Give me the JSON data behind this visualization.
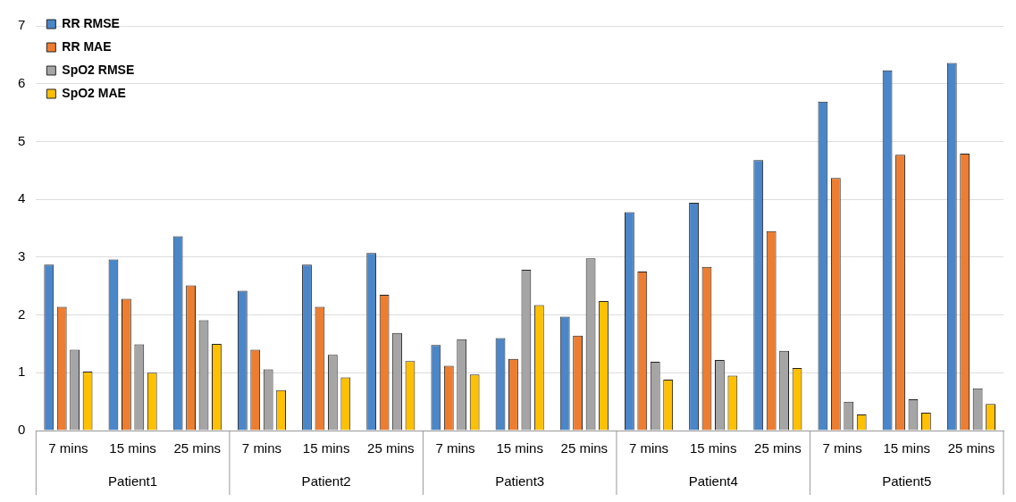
{
  "chart_data": {
    "type": "bar",
    "categories": [
      "7 mins",
      "15 mins",
      "25 mins",
      "7 mins",
      "15 mins",
      "25 mins",
      "7 mins",
      "15 mins",
      "25 mins",
      "7 mins",
      "15 mins",
      "25 mins",
      "7 mins",
      "15 mins",
      "25 mins"
    ],
    "annotations": [
      "Patient1",
      "Patient2",
      "Patient3",
      "Patient4",
      "Patient5"
    ],
    "series": [
      {
        "name": "RR RMSE",
        "color": "#4a86c8",
        "values": [
          2.87,
          2.96,
          3.36,
          2.42,
          2.87,
          3.07,
          1.48,
          1.6,
          1.97,
          3.78,
          3.94,
          4.68,
          5.69,
          6.23,
          6.36
        ]
      },
      {
        "name": "RR MAE",
        "color": "#ed7d31",
        "values": [
          2.14,
          2.28,
          2.51,
          1.4,
          2.14,
          2.35,
          1.12,
          1.24,
          1.64,
          2.75,
          2.83,
          3.45,
          4.37,
          4.77,
          4.79
        ]
      },
      {
        "name": "SpO2 RMSE",
        "color": "#a5a5a5",
        "values": [
          1.4,
          1.49,
          1.91,
          1.06,
          1.31,
          1.69,
          1.58,
          2.78,
          2.98,
          1.19,
          1.22,
          1.38,
          0.5,
          0.54,
          0.73
        ]
      },
      {
        "name": "SpO2 MAE",
        "color": "#ffc000",
        "values": [
          1.02,
          1.0,
          1.5,
          0.7,
          0.92,
          1.2,
          0.97,
          2.17,
          2.24,
          0.88,
          0.95,
          1.08,
          0.28,
          0.31,
          0.46
        ]
      }
    ],
    "ylim": [
      0,
      7
    ],
    "yticks": [
      0,
      1,
      2,
      3,
      4,
      5,
      6,
      7
    ],
    "grid": "y",
    "legend": "top left"
  }
}
